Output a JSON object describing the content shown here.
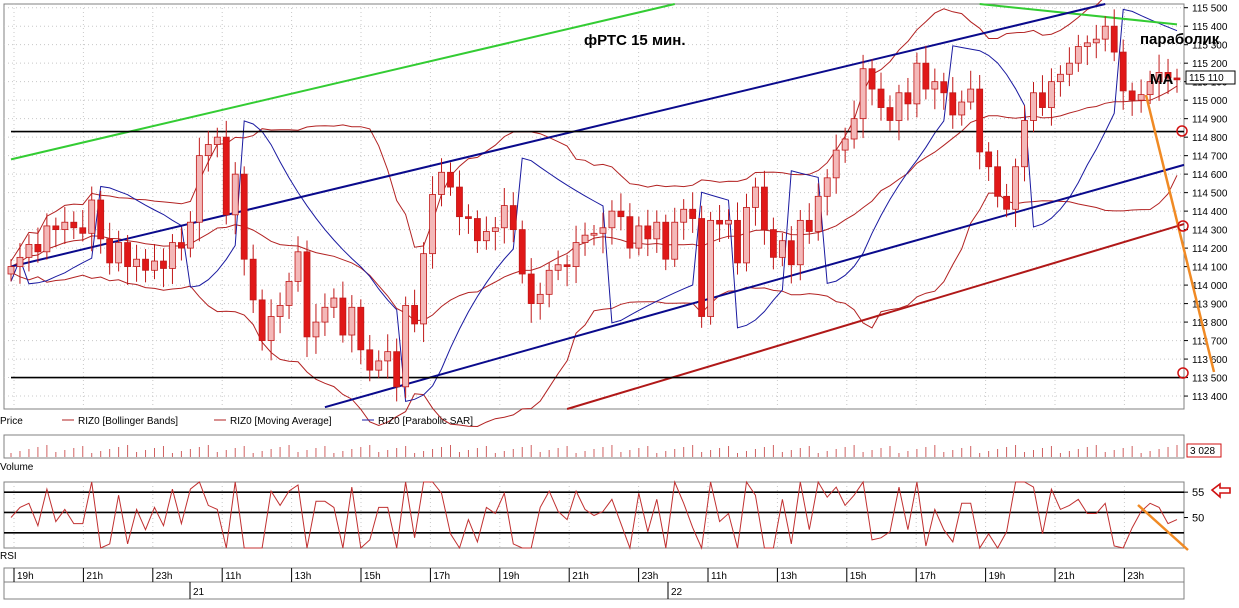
{
  "chart_data": [
    {
      "type": "candlestick",
      "panel": "price",
      "title": "фРТС   15 мин.",
      "annotations": {
        "parabolic": "параболик",
        "ma": "МА",
        "current_price_tag": "115 110"
      },
      "ylim": [
        113330,
        115520
      ],
      "y_ticks": [
        {
          "value": 115500,
          "label": "115 500"
        },
        {
          "value": 115400,
          "label": "115 400"
        },
        {
          "value": 115300,
          "label": "115 300"
        },
        {
          "value": 115200,
          "label": "115 200"
        },
        {
          "value": 115100,
          "label": "115 100"
        },
        {
          "value": 115000,
          "label": "115 000"
        },
        {
          "value": 114900,
          "label": "114 900"
        },
        {
          "value": 114800,
          "label": "114 800"
        },
        {
          "value": 114700,
          "label": "114 700"
        },
        {
          "value": 114600,
          "label": "114 600"
        },
        {
          "value": 114500,
          "label": "114 500"
        },
        {
          "value": 114400,
          "label": "114 400"
        },
        {
          "value": 114300,
          "label": "114 300"
        },
        {
          "value": 114200,
          "label": "114 200"
        },
        {
          "value": 114100,
          "label": "114 100"
        },
        {
          "value": 114000,
          "label": "114 000"
        },
        {
          "value": 113900,
          "label": "113 900"
        },
        {
          "value": 113800,
          "label": "113 800"
        },
        {
          "value": 113700,
          "label": "113 700"
        },
        {
          "value": 113600,
          "label": "113 600"
        },
        {
          "value": 113500,
          "label": "113 500"
        },
        {
          "value": 113400,
          "label": "113 400"
        }
      ],
      "legend": [
        {
          "label": "Price",
          "color": "#000000"
        },
        {
          "label": "RIZ0 [Bollinger Bands]",
          "color": "#b22222"
        },
        {
          "label": "RIZ0 [Moving Average]",
          "color": "#b22222"
        },
        {
          "label": "RIZ0 [Parabolic SAR]",
          "color": "#1a1aa0"
        }
      ],
      "candle_closes": [
        114100,
        114150,
        114220,
        114180,
        114320,
        114300,
        114340,
        114310,
        114280,
        114460,
        114250,
        114120,
        114230,
        114100,
        114140,
        114080,
        114130,
        114090,
        114230,
        114200,
        114340,
        114700,
        114760,
        114800,
        114380,
        114600,
        114140,
        113920,
        113700,
        113830,
        113890,
        114020,
        114180,
        113720,
        113800,
        113880,
        113930,
        113730,
        113880,
        113650,
        113540,
        113590,
        113640,
        113450,
        113890,
        113790,
        114170,
        114490,
        114610,
        114530,
        114370,
        114360,
        114240,
        114290,
        114310,
        114430,
        114300,
        114060,
        113900,
        113950,
        114080,
        114110,
        114100,
        114230,
        114270,
        114280,
        114310,
        114400,
        114370,
        114200,
        114320,
        114250,
        114340,
        114140,
        114340,
        114410,
        114360,
        113830,
        114350,
        114330,
        114350,
        114120,
        114420,
        114530,
        114300,
        114150,
        114240,
        114110,
        114350,
        114290,
        114480,
        114580,
        114730,
        114790,
        114900,
        115170,
        115060,
        114960,
        114890,
        115040,
        114980,
        115200,
        115060,
        115100,
        115040,
        114920,
        114990,
        115060,
        114720,
        114640,
        114480,
        114410,
        114640,
        114890,
        115040,
        114960,
        115100,
        115140,
        115200,
        115290,
        115310,
        115330,
        115400,
        115260,
        115050,
        115000,
        115030,
        115100,
        115150,
        115120,
        115110
      ],
      "volume_label": "Volume",
      "volume_tag": "3 028",
      "lines": [
        {
          "name": "upper-green-trend",
          "color": "#33cc33",
          "points": [
            [
              0,
              114680
            ],
            [
              74,
              115520
            ]
          ]
        },
        {
          "name": "top-green-line",
          "color": "#33cc33",
          "points": [
            [
              108,
              115520
            ],
            [
              130,
              115410
            ]
          ]
        },
        {
          "name": "blue-channel-top",
          "color": "#0a0a8c",
          "points": [
            [
              0,
              114100
            ],
            [
              122,
              115520
            ]
          ]
        },
        {
          "name": "blue-channel-bottom",
          "color": "#0a0a8c",
          "points": [
            [
              35,
              113340
            ],
            [
              144,
              114650
            ]
          ]
        },
        {
          "name": "red-trend",
          "color": "#b01818",
          "points": [
            [
              62,
              113330
            ],
            [
              144,
              114330
            ]
          ]
        },
        {
          "name": "resistance",
          "color": "#000000",
          "points": [
            [
              0,
              114830
            ],
            [
              144,
              114830
            ]
          ]
        },
        {
          "name": "support",
          "color": "#000000",
          "points": [
            [
              0,
              113500
            ],
            [
              144,
              113500
            ]
          ]
        }
      ]
    },
    {
      "type": "line",
      "panel": "rsi",
      "title": "RSI",
      "y_ticks": [
        {
          "value": 55,
          "label": "55"
        },
        {
          "value": 50,
          "label": "50"
        }
      ],
      "levels": [
        55,
        51,
        47
      ],
      "ylim": [
        44,
        57
      ]
    }
  ],
  "x_axis": {
    "hour_labels": [
      "19h",
      "21h",
      "23h",
      "11h",
      "13h",
      "15h",
      "17h",
      "19h",
      "21h",
      "23h",
      "11h",
      "13h",
      "15h",
      "17h",
      "19h",
      "21h",
      "23h"
    ],
    "day_labels": [
      "21",
      "22"
    ]
  }
}
